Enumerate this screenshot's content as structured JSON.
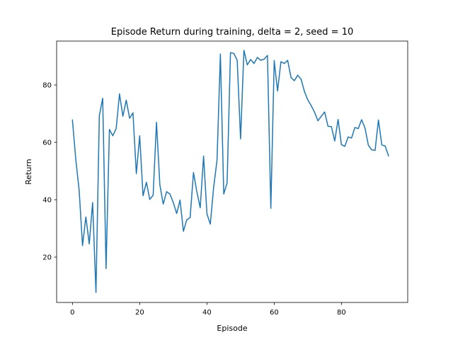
{
  "chart_data": {
    "type": "line",
    "title": "Episode Return during training, delta = 2, seed = 10",
    "xlabel": "Episode",
    "ylabel": "Return",
    "xlim": [
      -4.7,
      99.7
    ],
    "ylim": [
      4.2,
      95.3
    ],
    "xticks": [
      0,
      20,
      40,
      60,
      80
    ],
    "yticks": [
      20,
      40,
      60,
      80
    ],
    "grid": false,
    "line_color": "#1f77b4",
    "series": [
      {
        "x": [
          0,
          1,
          2,
          3,
          4,
          5,
          6,
          7,
          8,
          9,
          10,
          11,
          12,
          13,
          14,
          15,
          16,
          17,
          18,
          19,
          20,
          21,
          22,
          23,
          24,
          25,
          26,
          27,
          28,
          29,
          30,
          31,
          32,
          33,
          34,
          35,
          36,
          37,
          38,
          39,
          40,
          41,
          42,
          43,
          44,
          45,
          46,
          47,
          48,
          49,
          50,
          51,
          52,
          53,
          54,
          55,
          56,
          57,
          58,
          59,
          60,
          61,
          62,
          63,
          64,
          65,
          66,
          67,
          68,
          69,
          70,
          71,
          72,
          73,
          74,
          75,
          76,
          77,
          78,
          79,
          80,
          81,
          82,
          83,
          84,
          85,
          86,
          87,
          88,
          89,
          90,
          91,
          92,
          93,
          94
        ],
        "y": [
          67.8,
          54.0,
          43.3,
          24.0,
          34.0,
          24.6,
          39.0,
          7.7,
          69.3,
          75.4,
          16.0,
          64.5,
          62.3,
          64.8,
          76.9,
          69.1,
          74.7,
          68.4,
          70.3,
          49.1,
          62.3,
          41.4,
          46.1,
          40.1,
          41.6,
          67.0,
          45.2,
          38.5,
          42.8,
          42.0,
          39.0,
          35.2,
          39.9,
          29.0,
          33.0,
          33.8,
          49.5,
          42.8,
          37.2,
          55.2,
          35.1,
          31.5,
          44.4,
          53.8,
          90.8,
          42.0,
          45.9,
          91.3,
          91.0,
          88.6,
          61.2,
          92.1,
          87.0,
          88.9,
          87.5,
          89.6,
          88.6,
          89.0,
          90.3,
          37.0,
          88.5,
          77.9,
          88.1,
          87.5,
          88.6,
          82.6,
          81.5,
          83.4,
          82.0,
          77.7,
          74.8,
          72.8,
          70.5,
          67.5,
          69.1,
          70.6,
          65.6,
          65.5,
          60.5,
          68.0,
          59.2,
          58.6,
          61.9,
          61.5,
          65.2,
          64.8,
          67.9,
          65.0,
          59.0,
          57.4,
          57.2,
          67.8,
          59.1,
          58.7,
          55.3
        ]
      }
    ]
  }
}
